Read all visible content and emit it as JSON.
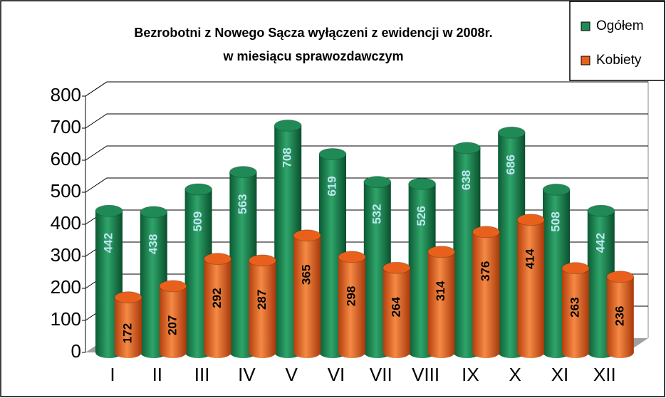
{
  "chart_data": {
    "type": "bar",
    "title": [
      "Bezrobotni z Nowego Sącza wyłączeni z ewidencji w 2008r.",
      "w miesiącu sprawozdawczym"
    ],
    "categories": [
      "I",
      "II",
      "III",
      "IV",
      "V",
      "VI",
      "VII",
      "VIII",
      "IX",
      "X",
      "XI",
      "XII"
    ],
    "series": [
      {
        "name": "Ogółem",
        "color": "#1f8a55",
        "values": [
          442,
          438,
          509,
          563,
          708,
          619,
          532,
          526,
          638,
          686,
          508,
          442
        ]
      },
      {
        "name": "Kobiety",
        "color": "#e8601c",
        "values": [
          172,
          207,
          292,
          287,
          365,
          298,
          264,
          314,
          376,
          414,
          263,
          236
        ]
      }
    ],
    "ylim": [
      0,
      800
    ],
    "yticks": [
      0,
      100,
      200,
      300,
      400,
      500,
      600,
      700,
      800
    ],
    "grid": true,
    "legend": "top-right"
  }
}
